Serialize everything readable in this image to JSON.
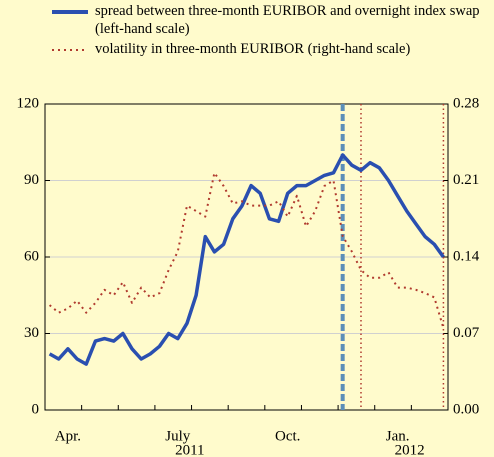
{
  "chart_data": {
    "type": "line",
    "categories": [
      null,
      null,
      "Apr.",
      null,
      null,
      null,
      null,
      null,
      null,
      null,
      null,
      null,
      null,
      null,
      "July",
      null,
      null,
      null,
      null,
      null,
      null,
      null,
      null,
      null,
      null,
      null,
      "Oct.",
      null,
      null,
      null,
      null,
      null,
      null,
      null,
      null,
      null,
      null,
      null,
      "Jan.",
      null,
      null,
      null,
      null,
      null
    ],
    "years": [
      null,
      null,
      null,
      null,
      null,
      null,
      null,
      null,
      null,
      null,
      null,
      null,
      null,
      null,
      "2011",
      null,
      null,
      null,
      null,
      null,
      null,
      null,
      null,
      null,
      null,
      null,
      null,
      null,
      null,
      null,
      null,
      null,
      null,
      null,
      null,
      null,
      null,
      null,
      "2012",
      null,
      null,
      null,
      null,
      null
    ],
    "series": [
      {
        "name": "spread between three-month EURIBOR and overnight index swap (left-hand scale)",
        "color": "#2a4fb0",
        "style": "solid",
        "values": [
          22,
          20,
          24,
          20,
          18,
          27,
          28,
          27,
          30,
          24,
          20,
          22,
          25,
          30,
          28,
          34,
          45,
          68,
          62,
          65,
          75,
          80,
          88,
          85,
          75,
          74,
          85,
          88,
          88,
          90,
          92,
          93,
          100,
          96,
          94,
          97,
          95,
          90,
          84,
          78,
          73,
          68,
          65,
          60
        ]
      },
      {
        "name": "volatility in three-month EURIBOR (right-hand scale)",
        "color": "#b03a2e",
        "style": "dotted",
        "axis": "y2",
        "values": [
          0.096,
          0.089,
          0.093,
          0.1,
          0.089,
          0.098,
          0.11,
          0.105,
          0.117,
          0.098,
          0.112,
          0.103,
          0.107,
          0.128,
          0.145,
          0.187,
          0.182,
          0.177,
          0.217,
          0.205,
          0.189,
          0.191,
          0.187,
          0.187,
          0.187,
          0.191,
          0.177,
          0.196,
          0.168,
          0.182,
          0.205,
          0.21,
          0.159,
          0.145,
          0.128,
          0.121,
          0.121,
          0.126,
          0.112,
          0.112,
          0.11,
          0.107,
          0.103,
          0.075
        ]
      }
    ],
    "ylim": [
      0,
      120
    ],
    "yticks": [
      0,
      30,
      60,
      90,
      120
    ],
    "y2lim": [
      0,
      0.28
    ],
    "y2ticks": [
      {
        "value": 0,
        "label": "0.00"
      },
      0.07,
      0.14,
      0.21,
      0.28
    ],
    "grid": true,
    "vertical_lines": [
      {
        "category_index": 32,
        "color": "#5b8fb9",
        "style": "dashed"
      },
      {
        "category_index": 34,
        "color": "#b03a2e",
        "style": "dotted"
      },
      {
        "category_index": 43,
        "color": "#b03a2e",
        "style": "dotted"
      }
    ]
  }
}
